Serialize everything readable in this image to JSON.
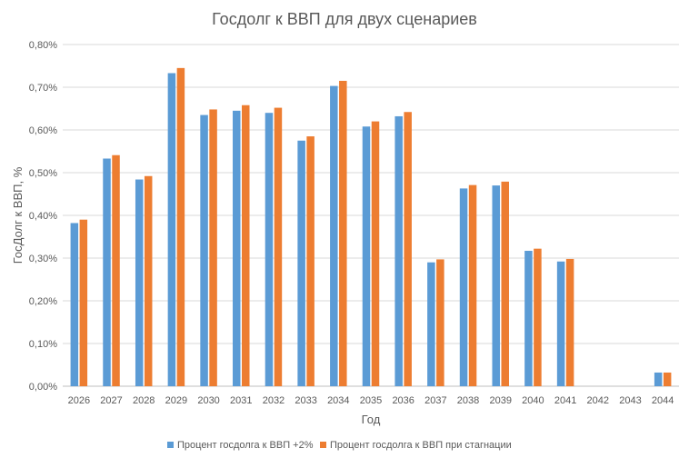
{
  "chart_data": {
    "type": "bar",
    "title": "Госдолг к ВВП для двух сценариев",
    "xlabel": "Год",
    "ylabel": "ГосДолг к ВВП, %",
    "ylim": [
      0,
      0.8
    ],
    "y_ticks": [
      "0,00%",
      "0,10%",
      "0,20%",
      "0,30%",
      "0,40%",
      "0,50%",
      "0,60%",
      "0,70%",
      "0,80%"
    ],
    "y_tick_values": [
      0,
      0.1,
      0.2,
      0.3,
      0.4,
      0.5,
      0.6,
      0.7,
      0.8
    ],
    "grid": true,
    "legend_position": "bottom",
    "categories": [
      "2026",
      "2027",
      "2028",
      "2029",
      "2030",
      "2031",
      "2032",
      "2033",
      "2034",
      "2035",
      "2036",
      "2037",
      "2038",
      "2039",
      "2040",
      "2041",
      "2042",
      "2043",
      "2044"
    ],
    "series": [
      {
        "name": "Процент госдолга к ВВП +2%",
        "color": "#5B9BD5",
        "values": [
          0.382,
          0.533,
          0.484,
          0.733,
          0.635,
          0.645,
          0.64,
          0.575,
          0.703,
          0.608,
          0.632,
          0.29,
          0.463,
          0.47,
          0.317,
          0.292,
          0,
          0,
          0.032
        ]
      },
      {
        "name": "Процент госдолга к ВВП при стагнации",
        "color": "#ED7D31",
        "values": [
          0.39,
          0.541,
          0.492,
          0.745,
          0.648,
          0.658,
          0.652,
          0.585,
          0.715,
          0.62,
          0.642,
          0.297,
          0.471,
          0.479,
          0.322,
          0.298,
          0,
          0,
          0.032
        ]
      }
    ]
  }
}
